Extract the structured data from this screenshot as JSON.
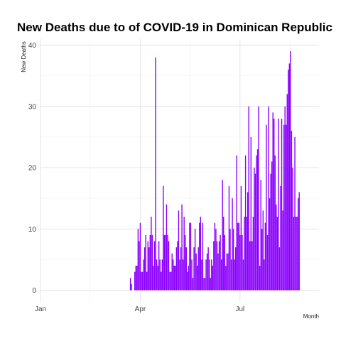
{
  "chart_data": {
    "type": "bar",
    "title": "New Deaths due to of COVID-19 in Dominican Republic",
    "xlabel": "Month",
    "ylabel": "New Deaths",
    "ylim": [
      0,
      41
    ],
    "y_ticks": [
      0,
      10,
      20,
      30,
      40
    ],
    "x_ticks": [
      "Jan",
      "Apr",
      "Jul"
    ],
    "x_range": [
      "2020-01-01",
      "2020-09-11"
    ],
    "grid": true,
    "bar_color": "#8B00FF",
    "series": [
      {
        "x_start": "2020-03-23",
        "values": [
          2,
          1,
          0,
          0,
          3,
          4,
          4,
          10,
          8,
          11,
          3,
          3,
          5,
          7,
          9,
          3,
          8,
          7,
          9,
          12,
          9,
          4,
          8,
          38,
          5,
          4,
          8,
          5,
          3,
          5,
          17,
          9,
          9,
          14,
          9,
          8,
          3,
          3,
          6,
          5,
          4,
          4,
          7,
          8,
          13,
          5,
          7,
          14,
          5,
          12,
          9,
          7,
          3,
          4,
          11,
          11,
          5,
          2,
          7,
          10,
          6,
          4,
          7,
          11,
          12,
          5,
          11,
          2,
          2,
          5,
          6,
          7,
          5,
          2,
          5,
          4,
          8,
          11,
          10,
          8,
          6,
          8,
          9,
          5,
          18,
          12,
          9,
          4,
          6,
          6,
          17,
          10,
          5,
          15,
          10,
          5,
          7,
          22,
          11,
          11,
          9,
          17,
          9,
          5,
          12,
          22,
          12,
          16,
          30,
          8,
          25,
          8,
          12,
          20,
          19,
          22,
          23,
          30,
          4,
          18,
          10,
          13,
          5,
          11,
          27,
          9,
          30,
          15,
          19,
          21,
          29,
          28,
          22,
          14,
          12,
          28,
          7,
          17,
          28,
          13,
          27,
          30,
          27,
          32,
          36,
          37,
          39,
          26,
          20,
          12,
          25,
          12,
          12,
          15,
          16
        ]
      }
    ]
  }
}
